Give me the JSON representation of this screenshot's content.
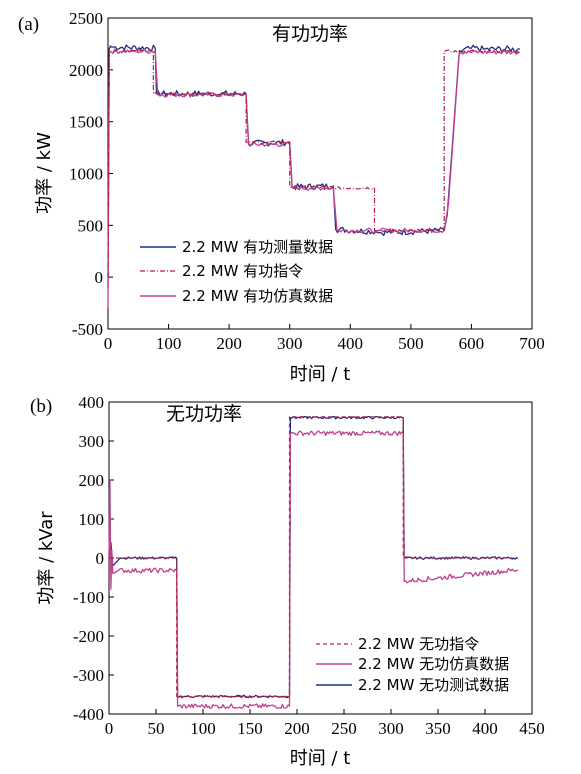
{
  "chart_data": [
    {
      "panel_label": "(a)",
      "type": "line",
      "title": "有功功率",
      "xlabel": "时间 / t",
      "ylabel": "功率 / kW",
      "xlim": [
        0,
        700
      ],
      "ylim": [
        -500,
        2500
      ],
      "xticks": [
        0,
        100,
        200,
        300,
        400,
        500,
        600,
        700
      ],
      "yticks": [
        -500,
        0,
        500,
        1000,
        1500,
        2000,
        2500
      ],
      "legend_position": "lower-left",
      "series": [
        {
          "name": "2.2 MW 有功测量数据",
          "color": "#1f2f8a",
          "dash": "solid",
          "x": [
            0,
            2,
            4,
            6,
            78,
            80,
            228,
            232,
            300,
            304,
            372,
            376,
            442,
            446,
            555,
            560,
            580,
            600,
            620,
            680
          ],
          "y": [
            -100,
            2200,
            2230,
            2220,
            2210,
            1770,
            1770,
            1290,
            1300,
            870,
            880,
            460,
            440,
            430,
            450,
            600,
            2180,
            2210,
            2200,
            2200
          ]
        },
        {
          "name": "2.2 MW 有功指令",
          "color": "#b0203a",
          "dash": "dashdot",
          "x": [
            0,
            2,
            75,
            75,
            228,
            228,
            300,
            300,
            372,
            372,
            440,
            440,
            555,
            555,
            680
          ],
          "y": [
            0,
            2180,
            2180,
            1770,
            1770,
            1300,
            1300,
            870,
            870,
            860,
            860,
            450,
            450,
            2180,
            2180
          ]
        },
        {
          "name": "2.2 MW 有功仿真数据",
          "color": "#c0408f",
          "dash": "solid",
          "x": [
            0,
            2,
            78,
            82,
            228,
            232,
            300,
            304,
            372,
            378,
            442,
            448,
            555,
            562,
            580,
            680
          ],
          "y": [
            -300,
            2180,
            2180,
            1760,
            1760,
            1280,
            1280,
            860,
            860,
            450,
            450,
            450,
            450,
            700,
            2170,
            2170
          ]
        }
      ]
    },
    {
      "panel_label": "(b)",
      "type": "line",
      "title": "无功功率",
      "xlabel": "时间 / t",
      "ylabel": "功率 / kVar",
      "xlim": [
        0,
        450
      ],
      "ylim": [
        -400,
        400
      ],
      "xticks": [
        0,
        50,
        100,
        150,
        200,
        250,
        300,
        350,
        400,
        450
      ],
      "yticks": [
        -400,
        -300,
        -200,
        -100,
        0,
        100,
        200,
        300,
        400
      ],
      "legend_position": "lower-right",
      "series": [
        {
          "name": "2.2 MW 无功指令",
          "color": "#c0203a",
          "dash": "dashed",
          "x": [
            0,
            72,
            72,
            192,
            192,
            313,
            313,
            435
          ],
          "y": [
            0,
            0,
            -355,
            -355,
            362,
            362,
            0,
            0
          ]
        },
        {
          "name": "2.2 MW 无功仿真数据",
          "color": "#c0408f",
          "dash": "solid",
          "x": [
            0,
            1,
            2,
            3,
            4,
            10,
            72,
            73,
            192,
            193,
            313,
            314,
            435
          ],
          "y": [
            0,
            200,
            -80,
            20,
            -40,
            -32,
            -32,
            -380,
            -380,
            320,
            320,
            -60,
            -30
          ]
        },
        {
          "name": "2.2 MW 无功测试数据",
          "color": "#1f2f8a",
          "dash": "solid",
          "x": [
            0,
            2,
            4,
            8,
            12,
            25,
            72,
            73,
            192,
            193,
            313,
            314,
            435
          ],
          "y": [
            0,
            40,
            -20,
            -10,
            0,
            0,
            0,
            -355,
            -355,
            360,
            360,
            0,
            0
          ]
        }
      ]
    }
  ]
}
